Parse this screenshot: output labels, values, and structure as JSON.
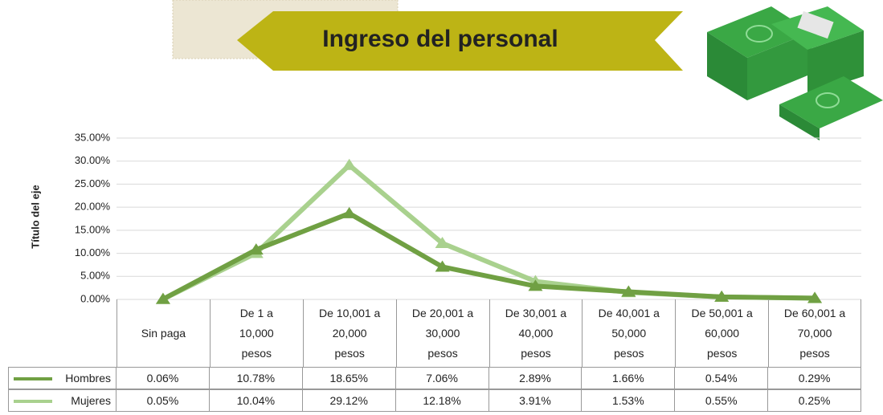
{
  "chart_data": {
    "type": "line",
    "title": "Ingreso del personal",
    "y_axis_label": "Título del eje",
    "categories": [
      "Sin paga",
      "De 1 a 10,000 pesos",
      "De 10,001 a 20,000 pesos",
      "De 20,001 a 30,000 pesos",
      "De 30,001 a 40,000 pesos",
      "De 40,001 a 50,000 pesos",
      "De 50,001 a 60,000 pesos",
      "De 60,001 a 70,000 pesos"
    ],
    "series": [
      {
        "name": "Hombres",
        "color": "#70a043",
        "values": [
          0.06,
          10.78,
          18.65,
          7.06,
          2.89,
          1.66,
          0.54,
          0.29
        ],
        "value_labels": [
          "0.06%",
          "10.78%",
          "18.65%",
          "7.06%",
          "2.89%",
          "1.66%",
          "0.54%",
          "0.29%"
        ]
      },
      {
        "name": "Mujeres",
        "color": "#a9d18e",
        "values": [
          0.05,
          10.04,
          29.12,
          12.18,
          3.91,
          1.53,
          0.55,
          0.25
        ],
        "value_labels": [
          "0.05%",
          "10.04%",
          "29.12%",
          "12.18%",
          "3.91%",
          "1.53%",
          "0.55%",
          "0.25%"
        ]
      }
    ],
    "ylim": [
      0,
      35
    ],
    "yticks": [
      {
        "value": 0,
        "label": "0.00%"
      },
      {
        "value": 5,
        "label": "5.00%"
      },
      {
        "value": 10,
        "label": "10.00%"
      },
      {
        "value": 15,
        "label": "15.00%"
      },
      {
        "value": 20,
        "label": "20.00%"
      },
      {
        "value": 25,
        "label": "25.00%"
      },
      {
        "value": 30,
        "label": "30.00%"
      },
      {
        "value": 35,
        "label": "35.00%"
      }
    ],
    "grid": true
  }
}
